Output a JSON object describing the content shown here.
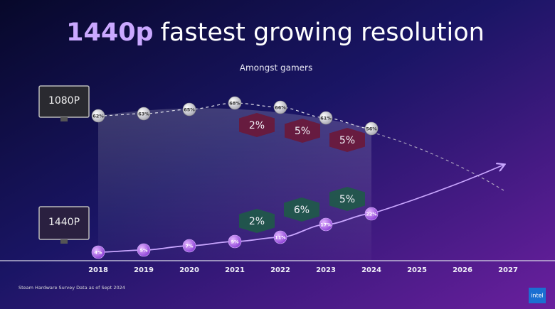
{
  "chart_data": {
    "type": "line",
    "title_highlight": "1440p",
    "title": "fastest growing resolution",
    "subtitle": "Amongst gamers",
    "categories": [
      "2018",
      "2019",
      "2020",
      "2021",
      "2022",
      "2023",
      "2024",
      "2025",
      "2026",
      "2027"
    ],
    "series": [
      {
        "name": "1080P",
        "color": "#e6e6ee",
        "values": [
          62,
          63,
          65,
          68,
          66,
          61,
          56,
          null,
          null,
          null
        ],
        "value_labels": [
          "62%",
          "63%",
          "65%",
          "68%",
          "66%",
          "61%",
          "56%",
          null,
          null,
          null
        ],
        "changes": [
          "2%",
          "5%",
          "5%"
        ],
        "change_color": "#6b1838"
      },
      {
        "name": "1440P",
        "color": "#b36bf0",
        "values": [
          4,
          5,
          7,
          9,
          11,
          17,
          22,
          null,
          null,
          null
        ],
        "value_labels": [
          "4%",
          "5%",
          "7%",
          "9%",
          "11%",
          "17%",
          "22%",
          null,
          null,
          null
        ],
        "changes": [
          "2%",
          "6%",
          "5%"
        ],
        "change_color": "#1f5a48"
      }
    ],
    "footnote": "Steam Hardware Survey Data as of Sept 2024",
    "logo": "intel"
  }
}
